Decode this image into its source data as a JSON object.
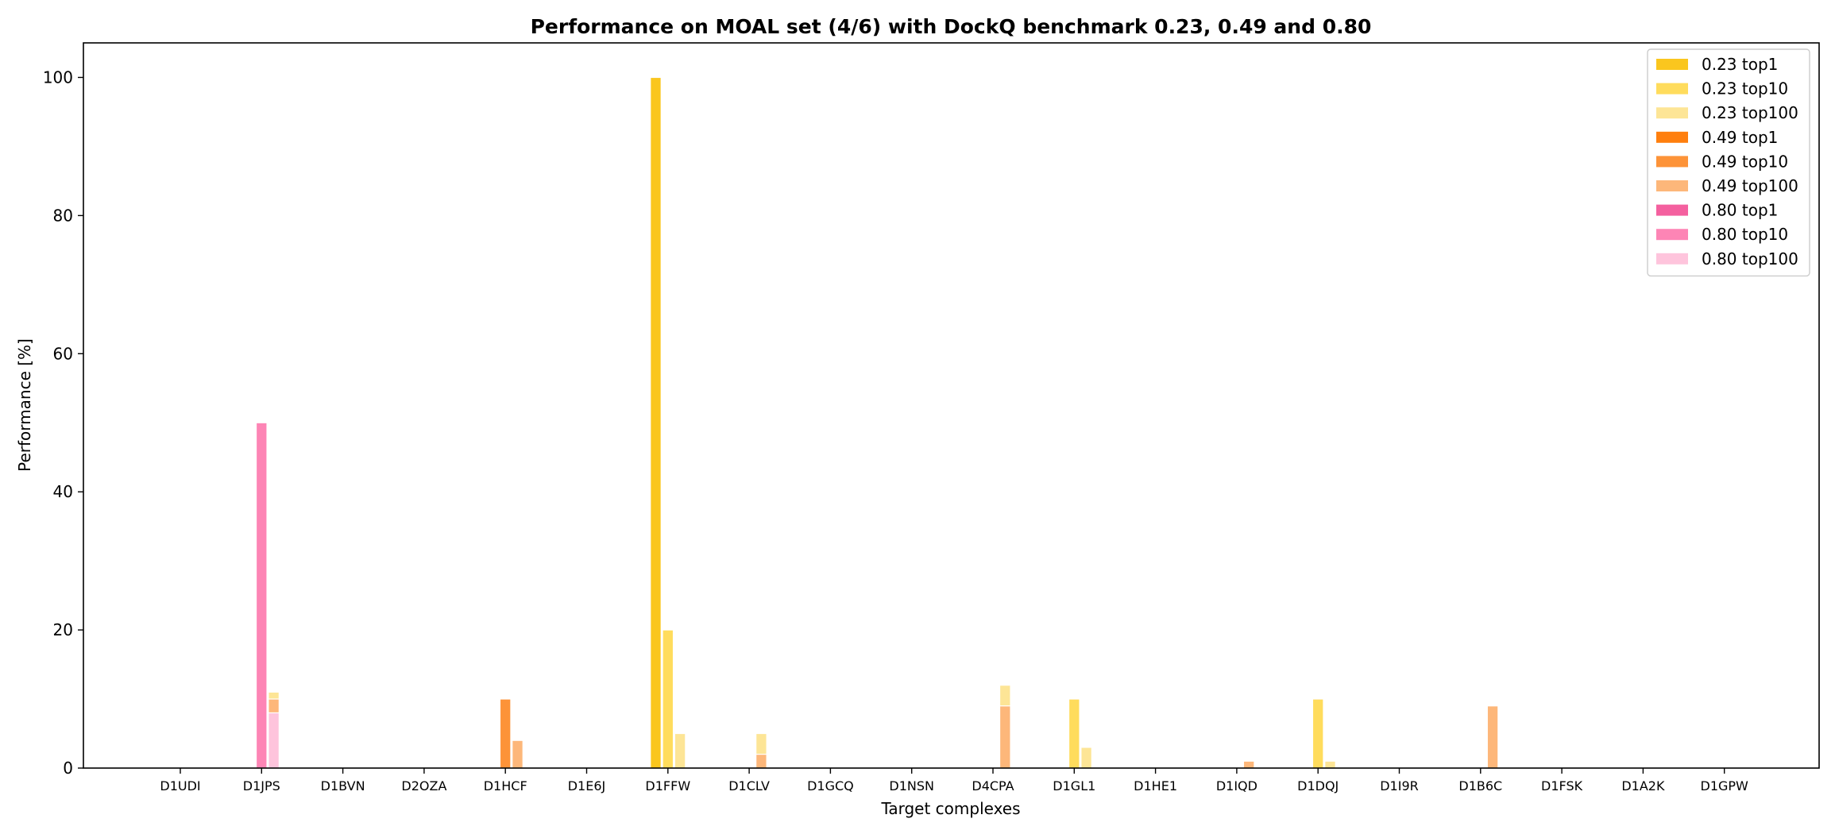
{
  "chart_data": {
    "type": "bar",
    "title": "Performance on MOAL set (4/6) with DockQ benchmark 0.23, 0.49 and 0.80",
    "xlabel": "Target complexes",
    "ylabel": "Performance [%]",
    "ylim": [
      0,
      105
    ],
    "yticks": [
      0,
      20,
      40,
      60,
      80,
      100
    ],
    "grid": false,
    "legend_position": "top-right",
    "categories": [
      "D1UDI",
      "D1JPS",
      "D1BVN",
      "D2OZA",
      "D1HCF",
      "D1E6J",
      "D1FFW",
      "D1CLV",
      "D1GCQ",
      "D1NSN",
      "D4CPA",
      "D1GL1",
      "D1HE1",
      "D1IQD",
      "D1DQJ",
      "D1I9R",
      "D1B6C",
      "D1FSK",
      "D1A2K",
      "D1GPW"
    ],
    "bar_groups": [
      "top1",
      "top10",
      "top100"
    ],
    "series": [
      {
        "name": "0.23 top1",
        "threshold": "0.23",
        "group": "top1",
        "color": "#fac61e",
        "values": [
          0,
          0,
          0,
          0,
          0,
          0,
          100,
          0,
          0,
          0,
          0,
          0,
          0,
          0,
          0,
          0,
          0,
          0,
          0,
          0
        ]
      },
      {
        "name": "0.23 top10",
        "threshold": "0.23",
        "group": "top10",
        "color": "#ffdc5c",
        "values": [
          0,
          0,
          0,
          0,
          0,
          0,
          20,
          0,
          0,
          0,
          0,
          10,
          0,
          0,
          10,
          0,
          0,
          0,
          0,
          0
        ]
      },
      {
        "name": "0.23 top100",
        "threshold": "0.23",
        "group": "top100",
        "color": "#fde596",
        "values": [
          0,
          11,
          0,
          0,
          0,
          0,
          5,
          5,
          0,
          0,
          12,
          3,
          0,
          0,
          1,
          0,
          0,
          0,
          0,
          0
        ]
      },
      {
        "name": "0.49 top1",
        "threshold": "0.49",
        "group": "top1",
        "color": "#ff7f0e",
        "values": [
          0,
          0,
          0,
          0,
          0,
          0,
          0,
          0,
          0,
          0,
          0,
          0,
          0,
          0,
          0,
          0,
          0,
          0,
          0,
          0
        ]
      },
      {
        "name": "0.49 top10",
        "threshold": "0.49",
        "group": "top10",
        "color": "#fd9338",
        "values": [
          0,
          0,
          0,
          0,
          10,
          0,
          0,
          0,
          0,
          0,
          0,
          0,
          0,
          0,
          0,
          0,
          0,
          0,
          0,
          0
        ]
      },
      {
        "name": "0.49 top100",
        "threshold": "0.49",
        "group": "top100",
        "color": "#fdb77a",
        "values": [
          0,
          10,
          0,
          0,
          4,
          0,
          0,
          2,
          0,
          0,
          9,
          0,
          0,
          1,
          0,
          0,
          9,
          0,
          0,
          0
        ]
      },
      {
        "name": "0.80 top1",
        "threshold": "0.80",
        "group": "top1",
        "color": "#f4609f",
        "values": [
          0,
          0,
          0,
          0,
          0,
          0,
          0,
          0,
          0,
          0,
          0,
          0,
          0,
          0,
          0,
          0,
          0,
          0,
          0,
          0
        ]
      },
      {
        "name": "0.80 top10",
        "threshold": "0.80",
        "group": "top10",
        "color": "#fd85b5",
        "values": [
          0,
          50,
          0,
          0,
          0,
          0,
          0,
          0,
          0,
          0,
          0,
          0,
          0,
          0,
          0,
          0,
          0,
          0,
          0,
          0
        ]
      },
      {
        "name": "0.80 top100",
        "threshold": "0.80",
        "group": "top100",
        "color": "#fec4dc",
        "values": [
          0,
          8,
          0,
          0,
          0,
          0,
          0,
          0,
          0,
          0,
          0,
          0,
          0,
          0,
          0,
          0,
          0,
          0,
          0,
          0
        ]
      }
    ]
  }
}
